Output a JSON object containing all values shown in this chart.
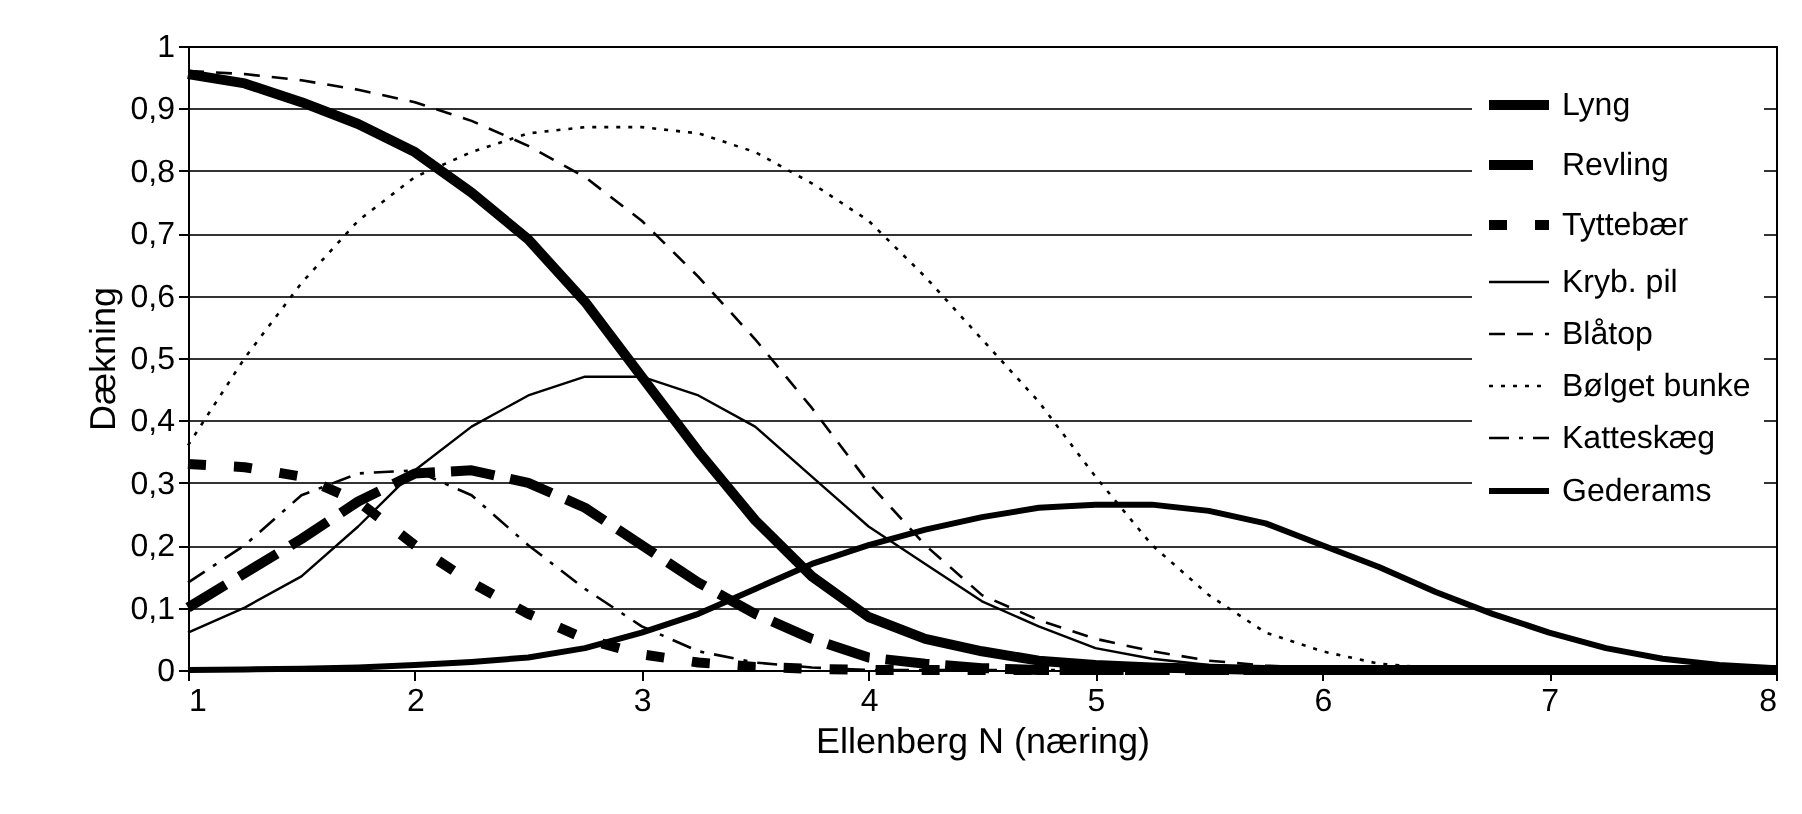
{
  "chart_data": {
    "type": "line",
    "xlabel": "Ellenberg N (næring)",
    "ylabel": "Dækning",
    "x": [
      1,
      1.25,
      1.5,
      1.75,
      2,
      2.25,
      2.5,
      2.75,
      3,
      3.25,
      3.5,
      3.75,
      4,
      4.25,
      4.5,
      4.75,
      5,
      5.25,
      5.5,
      5.75,
      6,
      6.25,
      6.5,
      6.75,
      7,
      7.25,
      7.5,
      7.75,
      8
    ],
    "series": [
      {
        "name": "Lyng",
        "color": "#000000",
        "line_style": "solid",
        "values": [
          0.955,
          0.94,
          0.91,
          0.875,
          0.83,
          0.765,
          0.69,
          0.59,
          0.47,
          0.35,
          0.24,
          0.15,
          0.085,
          0.05,
          0.03,
          0.015,
          0.008,
          0.004,
          0.002,
          0,
          0,
          0,
          0,
          0,
          0,
          0,
          0,
          0,
          0
        ]
      },
      {
        "name": "Revling",
        "color": "#000000",
        "line_style": "dashed",
        "values": [
          0.1,
          0.155,
          0.21,
          0.27,
          0.315,
          0.32,
          0.3,
          0.26,
          0.2,
          0.14,
          0.09,
          0.05,
          0.02,
          0.01,
          0.003,
          0,
          0,
          0,
          0,
          0,
          0,
          0,
          0,
          0,
          0,
          0,
          0,
          0,
          0
        ]
      },
      {
        "name": "Tyttebær",
        "color": "#000000",
        "line_style": "dashed",
        "values": [
          0.33,
          0.325,
          0.31,
          0.27,
          0.2,
          0.14,
          0.09,
          0.05,
          0.025,
          0.012,
          0.005,
          0.002,
          0,
          0,
          0,
          0,
          0,
          0,
          0,
          0,
          0,
          0,
          0,
          0,
          0,
          0,
          0,
          0,
          0
        ]
      },
      {
        "name": "Kryb. pil",
        "color": "#000000",
        "line_style": "solid",
        "values": [
          0.06,
          0.1,
          0.15,
          0.23,
          0.32,
          0.39,
          0.44,
          0.47,
          0.47,
          0.44,
          0.39,
          0.31,
          0.23,
          0.17,
          0.11,
          0.07,
          0.035,
          0.018,
          0.008,
          0.003,
          0,
          0,
          0,
          0,
          0,
          0,
          0,
          0,
          0
        ]
      },
      {
        "name": "Blåtop",
        "color": "#000000",
        "line_style": "dashed",
        "values": [
          0.96,
          0.955,
          0.945,
          0.93,
          0.91,
          0.88,
          0.84,
          0.79,
          0.72,
          0.63,
          0.53,
          0.42,
          0.3,
          0.2,
          0.12,
          0.08,
          0.05,
          0.03,
          0.015,
          0.007,
          0.003,
          0,
          0,
          0,
          0,
          0,
          0,
          0,
          0
        ]
      },
      {
        "name": "Bølget bunke",
        "color": "#000000",
        "line_style": "dotted",
        "values": [
          0.36,
          0.5,
          0.62,
          0.72,
          0.79,
          0.83,
          0.86,
          0.87,
          0.87,
          0.86,
          0.83,
          0.78,
          0.72,
          0.63,
          0.53,
          0.43,
          0.31,
          0.2,
          0.12,
          0.06,
          0.03,
          0.01,
          0.003,
          0,
          0,
          0,
          0,
          0,
          0
        ]
      },
      {
        "name": "Katteskæg",
        "color": "#000000",
        "line_style": "dashdot",
        "values": [
          0.14,
          0.2,
          0.28,
          0.315,
          0.32,
          0.28,
          0.2,
          0.13,
          0.07,
          0.03,
          0.012,
          0.004,
          0,
          0,
          0,
          0,
          0,
          0,
          0,
          0,
          0,
          0,
          0,
          0,
          0,
          0,
          0,
          0,
          0
        ]
      },
      {
        "name": "Gederams",
        "color": "#000000",
        "line_style": "solid",
        "values": [
          0,
          0.001,
          0.002,
          0.004,
          0.008,
          0.013,
          0.02,
          0.035,
          0.06,
          0.09,
          0.13,
          0.17,
          0.2,
          0.225,
          0.245,
          0.26,
          0.265,
          0.265,
          0.255,
          0.235,
          0.2,
          0.165,
          0.125,
          0.09,
          0.06,
          0.035,
          0.018,
          0.008,
          0.003
        ]
      }
    ],
    "xlim": [
      1,
      8
    ],
    "xticks": [
      1,
      2,
      3,
      4,
      5,
      6,
      7,
      8
    ],
    "ylim": [
      0,
      1
    ],
    "yticks": [
      0,
      {
        "value": 0.1,
        "label": "0,1"
      },
      {
        "value": 0.2,
        "label": "0,2"
      },
      {
        "value": 0.3,
        "label": "0,3"
      },
      {
        "value": 0.4,
        "label": "0,4"
      },
      {
        "value": 0.5,
        "label": "0,5"
      },
      {
        "value": 0.6,
        "label": "0,6"
      },
      {
        "value": 0.7,
        "label": "0,7"
      },
      {
        "value": 0.8,
        "label": "0,8"
      },
      {
        "value": 0.9,
        "label": "0,9"
      },
      1
    ],
    "grid": "y",
    "legend": "top right",
    "marker": "none"
  }
}
